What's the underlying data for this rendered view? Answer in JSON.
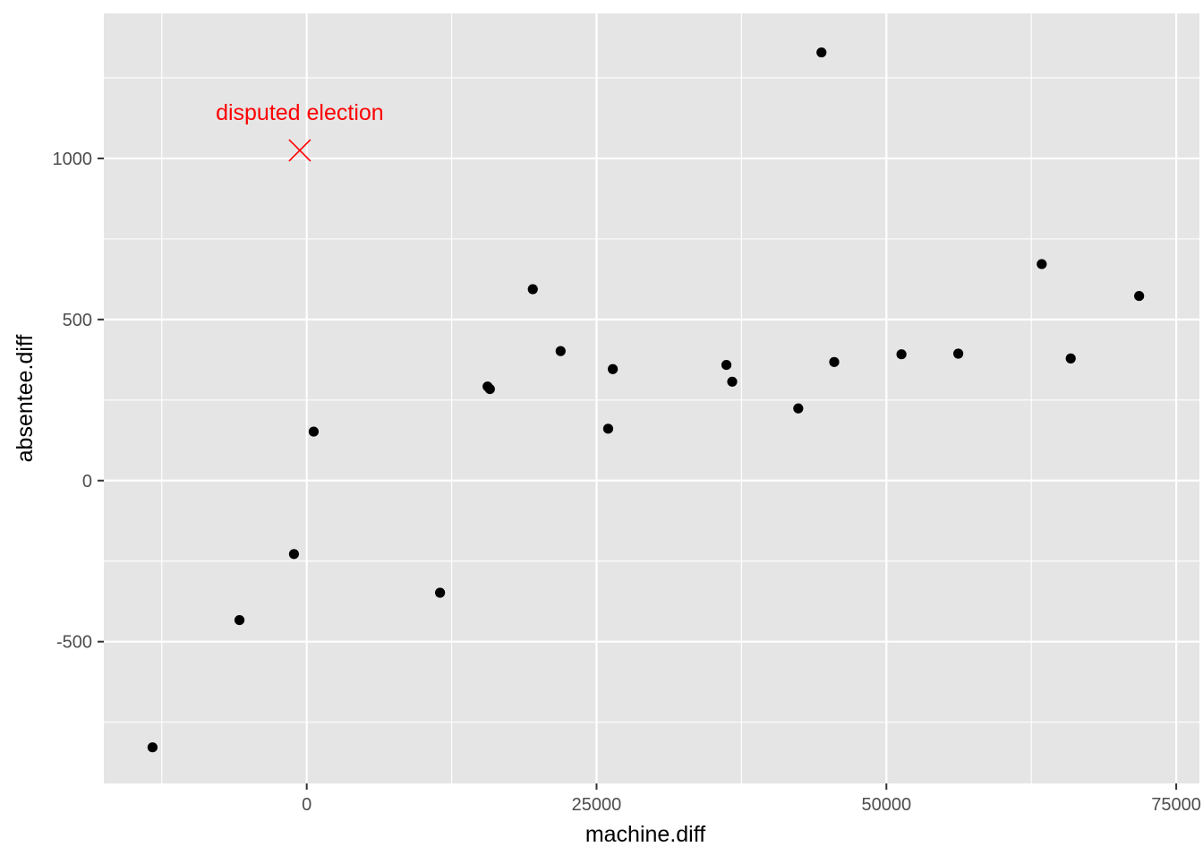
{
  "chart_data": {
    "type": "scatter",
    "title": "",
    "xlabel": "machine.diff",
    "ylabel": "absentee.diff",
    "xlim": [
      -17500,
      77000
    ],
    "ylim": [
      -940,
      1450
    ],
    "x_ticks": [
      0,
      25000,
      50000,
      75000
    ],
    "x_tick_labels": [
      "0",
      "25000",
      "50000",
      "75000"
    ],
    "y_ticks": [
      -500,
      0,
      500,
      1000
    ],
    "y_tick_labels": [
      "-500",
      "0",
      "500",
      "1000"
    ],
    "grid": true,
    "legend": "none",
    "points": [
      {
        "x": -13300,
        "y": -828
      },
      {
        "x": -5800,
        "y": -433
      },
      {
        "x": -1100,
        "y": -228
      },
      {
        "x": 600,
        "y": 152
      },
      {
        "x": 11500,
        "y": -348
      },
      {
        "x": 15600,
        "y": 292
      },
      {
        "x": 15800,
        "y": 284
      },
      {
        "x": 19500,
        "y": 594
      },
      {
        "x": 21900,
        "y": 402
      },
      {
        "x": 26000,
        "y": 161
      },
      {
        "x": 26400,
        "y": 346
      },
      {
        "x": 36200,
        "y": 359
      },
      {
        "x": 36700,
        "y": 307
      },
      {
        "x": 42400,
        "y": 224
      },
      {
        "x": 44400,
        "y": 1329
      },
      {
        "x": 45500,
        "y": 368
      },
      {
        "x": 51300,
        "y": 392
      },
      {
        "x": 56200,
        "y": 394
      },
      {
        "x": 63400,
        "y": 672
      },
      {
        "x": 65900,
        "y": 379
      },
      {
        "x": 71800,
        "y": 573
      }
    ],
    "highlight": {
      "x": -600,
      "y": 1025,
      "marker": "x",
      "label": "disputed election",
      "color": "#ff0000"
    },
    "colors": {
      "panel": "#e5e5e5",
      "grid": "#ffffff",
      "point": "#000000",
      "tick_label": "#4d4d4d",
      "axis_title": "#000000"
    }
  }
}
